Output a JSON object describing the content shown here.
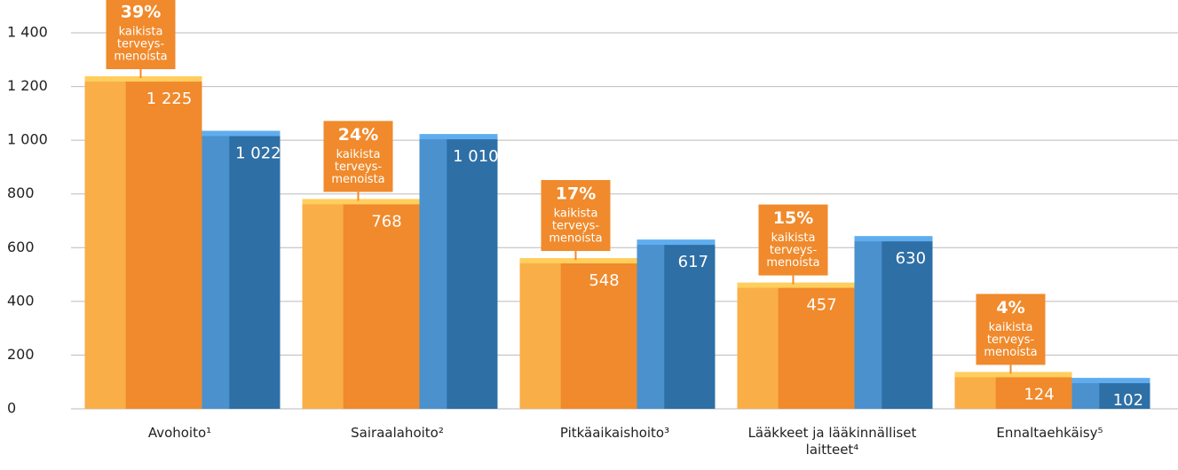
{
  "chart_data": {
    "type": "bar",
    "categories": [
      "Avohoito¹",
      "Sairaalahoito²",
      "Pitkäaikaishoito³",
      "Lääkkeet ja lääkinnälliset laitteet⁴",
      "Ennaltaehkäisy⁵"
    ],
    "series": [
      {
        "color": "#f08a2c",
        "values": [
          1225,
          768,
          548,
          457,
          124
        ],
        "value_labels": [
          "1 225",
          "768",
          "548",
          "457",
          "124"
        ]
      },
      {
        "color": "#2e6fa6",
        "values": [
          1022,
          1010,
          617,
          630,
          102
        ],
        "value_labels": [
          "1 022",
          "1 010",
          "617",
          "630",
          "102"
        ]
      }
    ],
    "annotations": [
      {
        "text": "39%",
        "lines": [
          "kaikista",
          "terveys-",
          "menoista"
        ]
      },
      {
        "text": "24%",
        "lines": [
          "kaikista",
          "terveys-",
          "menoista"
        ]
      },
      {
        "text": "17%",
        "lines": [
          "kaikista",
          "terveys-",
          "menoista"
        ]
      },
      {
        "text": "15%",
        "lines": [
          "kaikista",
          "terveys-",
          "menoista"
        ]
      },
      {
        "text": "4%",
        "lines": [
          "kaikista",
          "terveys-",
          "menoista"
        ]
      }
    ],
    "ylim": [
      0,
      1400
    ],
    "yticks": [
      0,
      200,
      400,
      600,
      800,
      {
        "value": 1000,
        "label": "1 000"
      },
      {
        "value": 1200,
        "label": "1 200"
      },
      {
        "value": 1400,
        "label": "1 400"
      }
    ],
    "grid": true
  }
}
